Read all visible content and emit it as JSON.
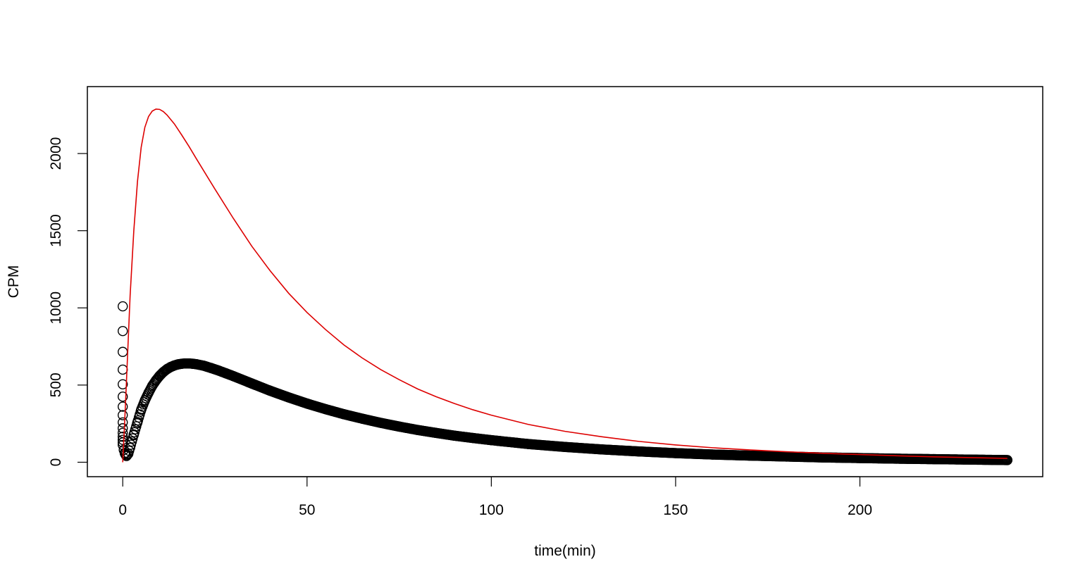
{
  "chart_data": {
    "type": "scatter",
    "title": "",
    "xlabel": "time(min)",
    "ylabel": "CPM",
    "xlim": [
      -9.6,
      249.6
    ],
    "ylim": [
      -93.6,
      2433.6
    ],
    "x_ticks": [
      0,
      50,
      100,
      150,
      200
    ],
    "x_tick_labels": [
      "0",
      "50",
      "100",
      "150",
      "200"
    ],
    "y_ticks": [
      0,
      500,
      1000,
      1500,
      2000
    ],
    "y_tick_labels": [
      "0",
      "500",
      "1000",
      "1500",
      "2000"
    ],
    "grid": false,
    "legend": "none",
    "colors": {
      "points": "#000000",
      "fitted_curve": "#dd0000",
      "frame": "#000000"
    },
    "series": [
      {
        "type": "scatter",
        "marker": "open-circle",
        "color": "#000000",
        "points": [
          [
            0,
            1010
          ],
          [
            0,
            850
          ],
          [
            0,
            715
          ],
          [
            0,
            600
          ],
          [
            0,
            505
          ],
          [
            0,
            425
          ],
          [
            0,
            360
          ],
          [
            0,
            305
          ],
          [
            0,
            258
          ],
          [
            0,
            220
          ],
          [
            0,
            190
          ],
          [
            0,
            165
          ],
          [
            0,
            145
          ],
          [
            0,
            128
          ],
          [
            0,
            112
          ],
          [
            0.3,
            80
          ],
          [
            0.6,
            55
          ],
          [
            1,
            40
          ],
          [
            1.5,
            55
          ],
          [
            2,
            95
          ],
          [
            3,
            180
          ],
          [
            4,
            260
          ],
          [
            5,
            340
          ],
          [
            6,
            400
          ],
          [
            7,
            450
          ],
          [
            8,
            495
          ],
          [
            9,
            530
          ],
          [
            10,
            560
          ],
          [
            11,
            584
          ],
          [
            12,
            603
          ],
          [
            13,
            617
          ],
          [
            14,
            627
          ],
          [
            15,
            634
          ],
          [
            16,
            638
          ],
          [
            17,
            640
          ],
          [
            18,
            640
          ],
          [
            19,
            638
          ],
          [
            20,
            635
          ],
          [
            22,
            625
          ],
          [
            24,
            610
          ],
          [
            26,
            594
          ],
          [
            28,
            576
          ],
          [
            30,
            558
          ],
          [
            35,
            510
          ],
          [
            40,
            463
          ],
          [
            45,
            420
          ],
          [
            50,
            380
          ],
          [
            55,
            344
          ],
          [
            60,
            311
          ],
          [
            65,
            282
          ],
          [
            70,
            255
          ],
          [
            75,
            231
          ],
          [
            80,
            209
          ],
          [
            85,
            190
          ],
          [
            90,
            172
          ],
          [
            95,
            157
          ],
          [
            100,
            143
          ],
          [
            110,
            118
          ],
          [
            120,
            99
          ],
          [
            130,
            83
          ],
          [
            140,
            70
          ],
          [
            150,
            59
          ],
          [
            160,
            50
          ],
          [
            170,
            43
          ],
          [
            180,
            37
          ],
          [
            190,
            31
          ],
          [
            200,
            27
          ],
          [
            210,
            23
          ],
          [
            220,
            20
          ],
          [
            230,
            17
          ],
          [
            240,
            14
          ]
        ]
      },
      {
        "type": "line",
        "color": "#dd0000",
        "points": [
          [
            0,
            0
          ],
          [
            0.5,
            250
          ],
          [
            1,
            520
          ],
          [
            1.5,
            800
          ],
          [
            2,
            1080
          ],
          [
            3,
            1500
          ],
          [
            4,
            1820
          ],
          [
            5,
            2040
          ],
          [
            6,
            2170
          ],
          [
            7,
            2240
          ],
          [
            8,
            2275
          ],
          [
            9,
            2288
          ],
          [
            10,
            2286
          ],
          [
            11,
            2272
          ],
          [
            12,
            2250
          ],
          [
            14,
            2192
          ],
          [
            16,
            2120
          ],
          [
            18,
            2045
          ],
          [
            20,
            1965
          ],
          [
            25,
            1770
          ],
          [
            30,
            1580
          ],
          [
            35,
            1400
          ],
          [
            40,
            1240
          ],
          [
            45,
            1095
          ],
          [
            50,
            970
          ],
          [
            55,
            860
          ],
          [
            60,
            760
          ],
          [
            65,
            675
          ],
          [
            70,
            600
          ],
          [
            75,
            535
          ],
          [
            80,
            475
          ],
          [
            85,
            425
          ],
          [
            90,
            380
          ],
          [
            95,
            340
          ],
          [
            100,
            305
          ],
          [
            110,
            245
          ],
          [
            120,
            200
          ],
          [
            130,
            165
          ],
          [
            140,
            135
          ],
          [
            150,
            112
          ],
          [
            160,
            94
          ],
          [
            170,
            80
          ],
          [
            180,
            68
          ],
          [
            190,
            58
          ],
          [
            200,
            50
          ],
          [
            210,
            42
          ],
          [
            220,
            35
          ],
          [
            230,
            30
          ],
          [
            240,
            25
          ]
        ]
      }
    ]
  }
}
